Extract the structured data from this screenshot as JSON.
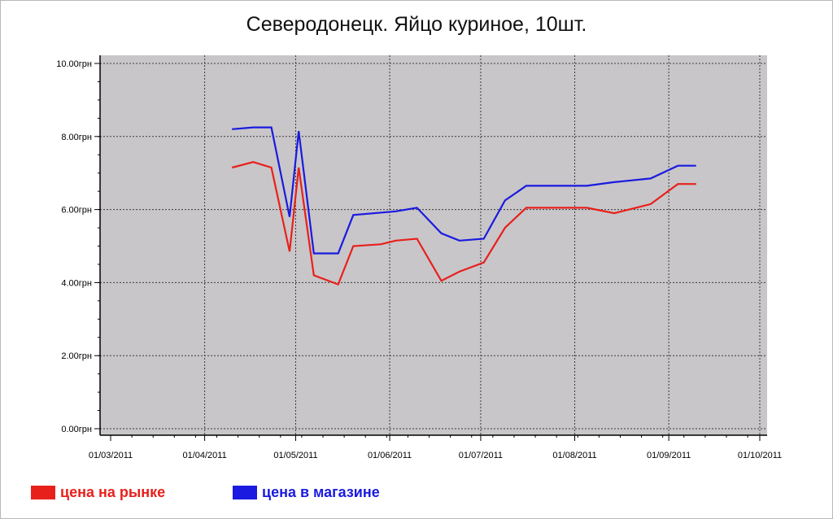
{
  "chart_data": {
    "type": "line",
    "title": "Северодонецк. Яйцо куриное, 10шт.",
    "xlabel": "",
    "ylabel": "",
    "ylim": [
      0,
      10
    ],
    "xlim": [
      "2011-03-01",
      "2011-10-01"
    ],
    "grid": true,
    "legend_position": "bottom-left",
    "plot_background": "#c8c6c9",
    "y_ticks": [
      {
        "value": 0,
        "label": "0.00грн"
      },
      {
        "value": 2,
        "label": "2.00грн"
      },
      {
        "value": 4,
        "label": "4.00грн"
      },
      {
        "value": 6,
        "label": "6.00грн"
      },
      {
        "value": 8,
        "label": "8.00грн"
      },
      {
        "value": 10,
        "label": "10.00грн"
      }
    ],
    "x_ticks": [
      {
        "value": "2011-03-01",
        "label": "01/03/2011"
      },
      {
        "value": "2011-04-01",
        "label": "01/04/2011"
      },
      {
        "value": "2011-05-01",
        "label": "01/05/2011"
      },
      {
        "value": "2011-06-01",
        "label": "01/06/2011"
      },
      {
        "value": "2011-07-01",
        "label": "01/07/2011"
      },
      {
        "value": "2011-08-01",
        "label": "01/08/2011"
      },
      {
        "value": "2011-09-01",
        "label": "01/09/2011"
      },
      {
        "value": "2011-10-01",
        "label": "01/10/2011"
      }
    ],
    "series": [
      {
        "name": "цена на рынке",
        "color": "#e8201c",
        "points": [
          {
            "x": "2011-04-10",
            "y": 7.15
          },
          {
            "x": "2011-04-17",
            "y": 7.3
          },
          {
            "x": "2011-04-23",
            "y": 7.15
          },
          {
            "x": "2011-04-29",
            "y": 4.85
          },
          {
            "x": "2011-05-02",
            "y": 7.15
          },
          {
            "x": "2011-05-07",
            "y": 4.2
          },
          {
            "x": "2011-05-15",
            "y": 3.95
          },
          {
            "x": "2011-05-20",
            "y": 5.0
          },
          {
            "x": "2011-05-29",
            "y": 5.05
          },
          {
            "x": "2011-06-03",
            "y": 5.15
          },
          {
            "x": "2011-06-10",
            "y": 5.2
          },
          {
            "x": "2011-06-18",
            "y": 4.05
          },
          {
            "x": "2011-06-24",
            "y": 4.3
          },
          {
            "x": "2011-07-02",
            "y": 4.55
          },
          {
            "x": "2011-07-09",
            "y": 5.5
          },
          {
            "x": "2011-07-16",
            "y": 6.05
          },
          {
            "x": "2011-08-05",
            "y": 6.05
          },
          {
            "x": "2011-08-14",
            "y": 5.9
          },
          {
            "x": "2011-08-26",
            "y": 6.15
          },
          {
            "x": "2011-09-04",
            "y": 6.7
          },
          {
            "x": "2011-09-10",
            "y": 6.7
          }
        ]
      },
      {
        "name": "цена в магазине",
        "color": "#1a1ae0",
        "points": [
          {
            "x": "2011-04-10",
            "y": 8.2
          },
          {
            "x": "2011-04-17",
            "y": 8.25
          },
          {
            "x": "2011-04-23",
            "y": 8.25
          },
          {
            "x": "2011-04-29",
            "y": 5.8
          },
          {
            "x": "2011-05-02",
            "y": 8.15
          },
          {
            "x": "2011-05-07",
            "y": 4.8
          },
          {
            "x": "2011-05-15",
            "y": 4.8
          },
          {
            "x": "2011-05-20",
            "y": 5.85
          },
          {
            "x": "2011-06-03",
            "y": 5.95
          },
          {
            "x": "2011-06-10",
            "y": 6.05
          },
          {
            "x": "2011-06-18",
            "y": 5.35
          },
          {
            "x": "2011-06-24",
            "y": 5.15
          },
          {
            "x": "2011-07-02",
            "y": 5.2
          },
          {
            "x": "2011-07-09",
            "y": 6.25
          },
          {
            "x": "2011-07-16",
            "y": 6.65
          },
          {
            "x": "2011-08-05",
            "y": 6.65
          },
          {
            "x": "2011-08-14",
            "y": 6.75
          },
          {
            "x": "2011-08-26",
            "y": 6.85
          },
          {
            "x": "2011-09-04",
            "y": 7.2
          },
          {
            "x": "2011-09-10",
            "y": 7.2
          }
        ]
      }
    ]
  }
}
